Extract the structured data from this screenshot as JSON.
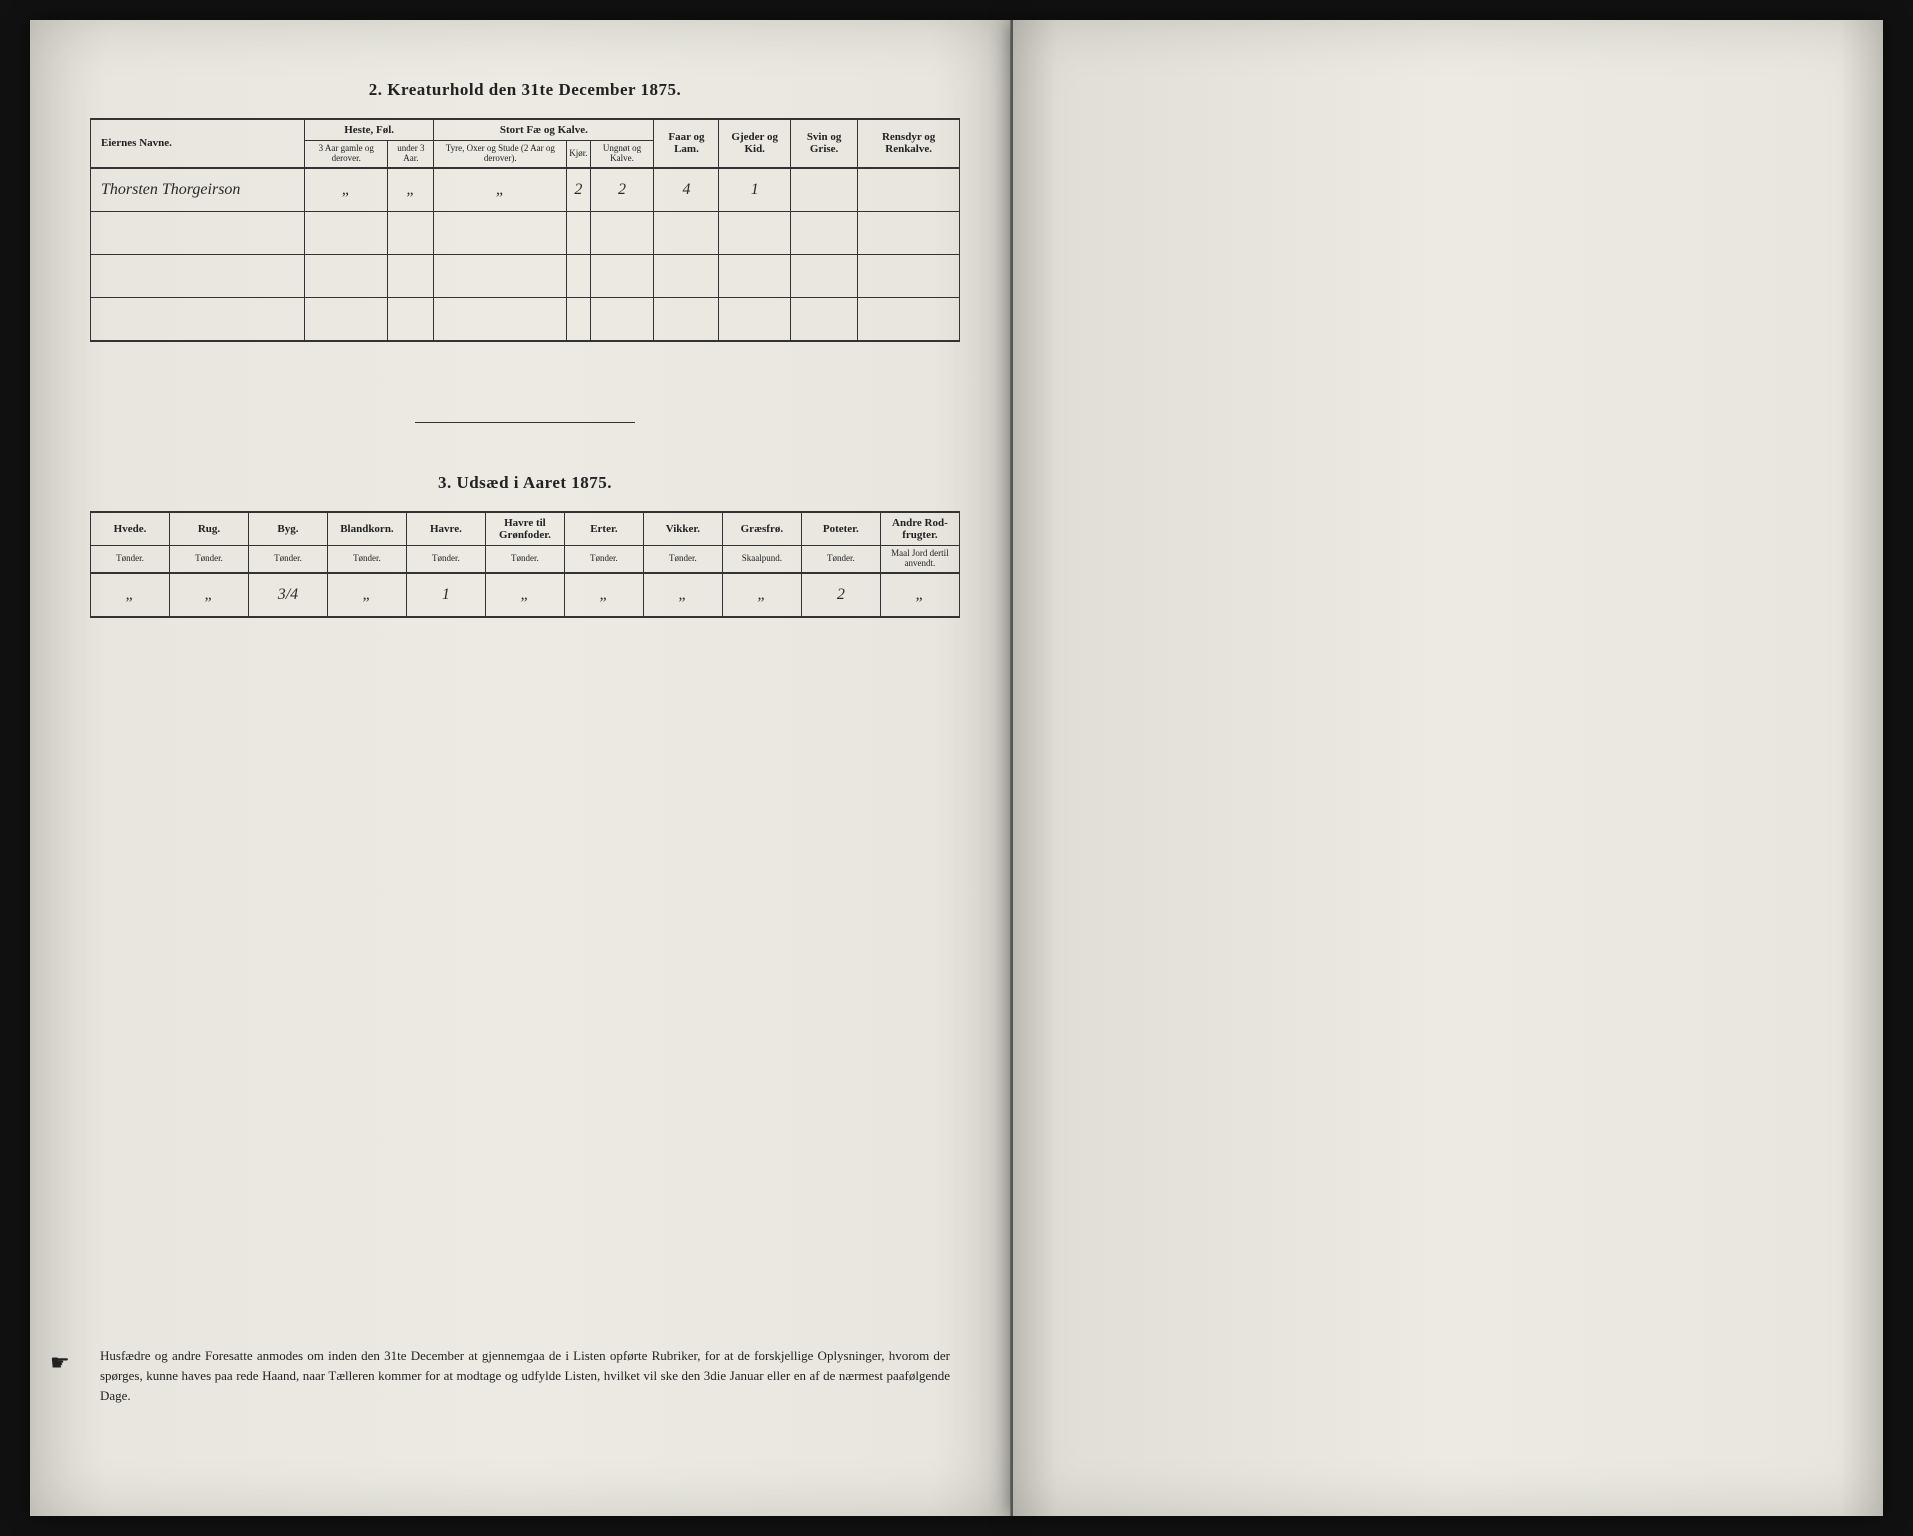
{
  "section2": {
    "title": "2.  Kreaturhold den 31te December 1875.",
    "headers": {
      "name": "Eiernes Navne.",
      "group1": "Heste, Føl.",
      "group2": "Stort Fæ og Kalve.",
      "col_faar": "Faar og Lam.",
      "col_gjeder": "Gjeder og Kid.",
      "col_svin": "Svin og Grise.",
      "col_ren": "Rensdyr og Renkalve.",
      "sub_heste1": "3 Aar gamle og derover.",
      "sub_heste2": "under 3 Aar.",
      "sub_fe1": "Tyre, Oxer og Stude (2 Aar og derover).",
      "sub_fe2": "Kjør.",
      "sub_fe3": "Ungnøt og Kalve."
    },
    "row": {
      "name": "Thorsten Thorgeirson",
      "heste1": "„",
      "heste2": "„",
      "fe1": "„",
      "fe2": "2",
      "fe3": "2",
      "faar": "4",
      "gjeder": "1",
      "svin": "",
      "ren": ""
    }
  },
  "section3": {
    "title": "3.  Udsæd i Aaret 1875.",
    "cols": [
      {
        "h": "Hvede.",
        "u": "Tønder."
      },
      {
        "h": "Rug.",
        "u": "Tønder."
      },
      {
        "h": "Byg.",
        "u": "Tønder."
      },
      {
        "h": "Blandkorn.",
        "u": "Tønder."
      },
      {
        "h": "Havre.",
        "u": "Tønder."
      },
      {
        "h": "Havre til Grønfoder.",
        "u": "Tønder."
      },
      {
        "h": "Erter.",
        "u": "Tønder."
      },
      {
        "h": "Vikker.",
        "u": "Tønder."
      },
      {
        "h": "Græsfrø.",
        "u": "Skaalpund."
      },
      {
        "h": "Poteter.",
        "u": "Tønder."
      },
      {
        "h": "Andre Rod-frugter.",
        "u": "Maal Jord dertil anvendt."
      }
    ],
    "row": [
      "„",
      "„",
      "3/4",
      "„",
      "1",
      "„",
      "„",
      "„",
      "„",
      "2",
      "„"
    ]
  },
  "footer": {
    "text": "Husfædre og andre Foresatte anmodes om inden den 31te December at gjennemgaa de i Listen opførte Rubriker, for at de forskjellige Oplysninger, hvorom der spørges, kunne haves paa rede Haand, naar Tælleren kommer for at modtage og udfylde Listen, hvilket vil ske den 3die Januar eller en af de nærmest paafølgende Dage."
  }
}
